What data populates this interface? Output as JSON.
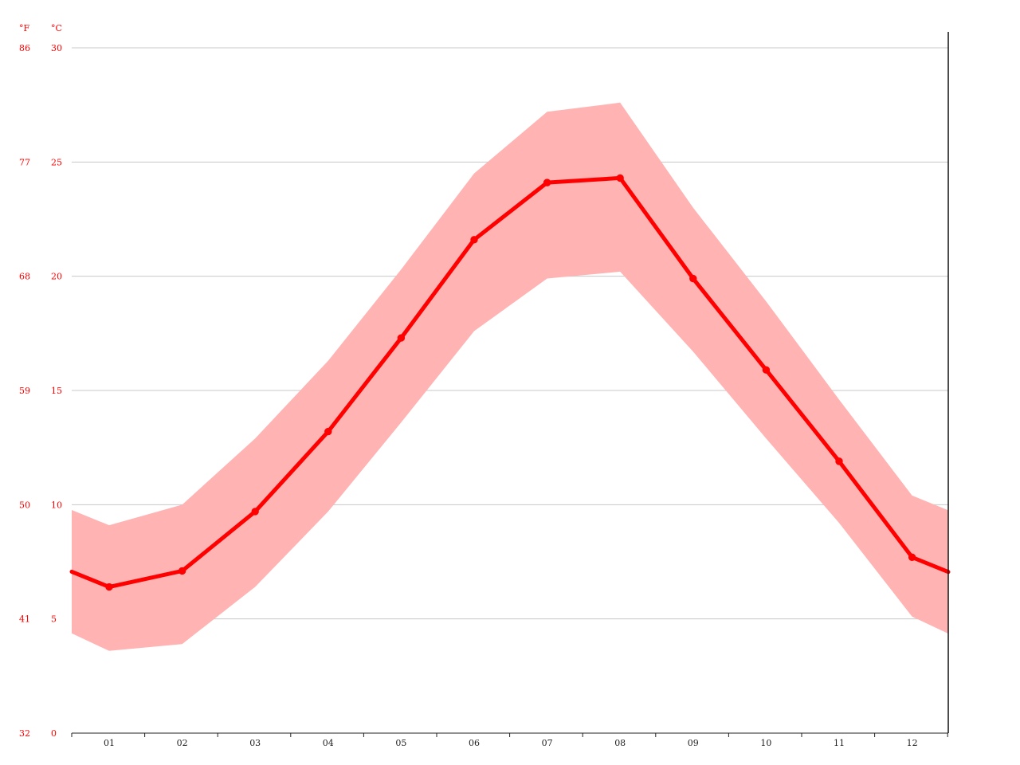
{
  "chart_data": {
    "type": "area",
    "title": "",
    "xlabel": "",
    "ylabel": "",
    "units": {
      "fahrenheit": "°F",
      "celsius": "°C"
    },
    "x_ticks": [
      "01",
      "02",
      "03",
      "04",
      "05",
      "06",
      "07",
      "08",
      "09",
      "10",
      "11",
      "12"
    ],
    "celsius_ticks": [
      30,
      25,
      20,
      15,
      10,
      5,
      0
    ],
    "fahrenheit_ticks": [
      86,
      77,
      68,
      59,
      50,
      41,
      32
    ],
    "ylim": [
      0,
      30
    ],
    "grid": true,
    "series": [
      {
        "values": [
          6.4,
          7.1,
          9.7,
          13.2,
          17.3,
          21.6,
          24.1,
          24.3,
          19.9,
          15.9,
          11.9,
          7.7
        ],
        "color": "#ff0000",
        "marker": "circle"
      }
    ],
    "band": {
      "upper": [
        9.1,
        10.0,
        12.9,
        16.3,
        20.3,
        24.5,
        27.2,
        27.6,
        23.0,
        18.9,
        14.6,
        10.4
      ],
      "lower": [
        3.6,
        3.9,
        6.4,
        9.7,
        13.6,
        17.6,
        19.9,
        20.2,
        16.7,
        12.9,
        9.2,
        5.1
      ],
      "color": "#ffb3b3"
    }
  }
}
